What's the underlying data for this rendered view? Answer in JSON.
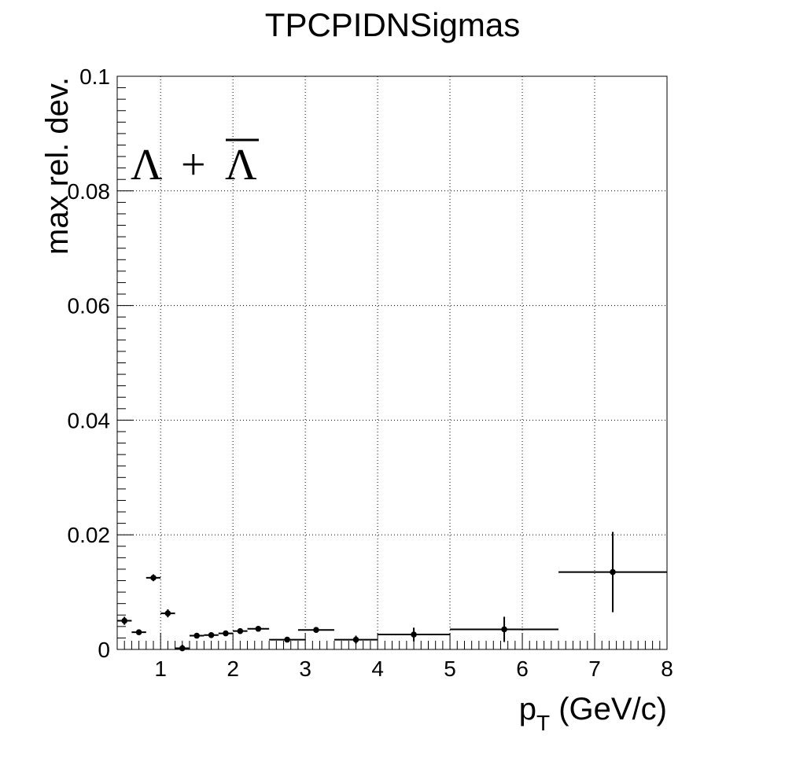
{
  "chart_data": {
    "type": "scatter",
    "title": "TPCPIDNSigmas",
    "xlabel_main": "p",
    "xlabel_sub": "T",
    "xlabel_units": " (GeV/c)",
    "ylabel": "max rel. dev.",
    "annotation": {
      "lambda": "Λ",
      "plus": "+",
      "antilambda": "Λ"
    },
    "xlim": [
      0.4,
      8.0
    ],
    "ylim": [
      0.0,
      0.1
    ],
    "x_ticks": [
      "1",
      "2",
      "3",
      "4",
      "5",
      "6",
      "7",
      "8"
    ],
    "x_tick_values": [
      1,
      2,
      3,
      4,
      5,
      6,
      7,
      8
    ],
    "y_ticks": [
      "0",
      "0.02",
      "0.04",
      "0.06",
      "0.08",
      "0.1"
    ],
    "y_tick_values": [
      0,
      0.02,
      0.04,
      0.06,
      0.08,
      0.1
    ],
    "grid": true,
    "legend": "none",
    "points": [
      {
        "x": 0.5,
        "y": 0.005,
        "xerr": 0.1,
        "yerr": 0.0007
      },
      {
        "x": 0.7,
        "y": 0.003,
        "xerr": 0.1,
        "yerr": 0.0003
      },
      {
        "x": 0.9,
        "y": 0.0125,
        "xerr": 0.1,
        "yerr": 0.0006
      },
      {
        "x": 1.1,
        "y": 0.0063,
        "xerr": 0.1,
        "yerr": 0.0007
      },
      {
        "x": 1.3,
        "y": 0.0002,
        "xerr": 0.1,
        "yerr": 0.0006
      },
      {
        "x": 1.5,
        "y": 0.0024,
        "xerr": 0.1,
        "yerr": 0.0003
      },
      {
        "x": 1.7,
        "y": 0.0025,
        "xerr": 0.1,
        "yerr": 0.0003
      },
      {
        "x": 1.9,
        "y": 0.0028,
        "xerr": 0.1,
        "yerr": 0.0003
      },
      {
        "x": 2.1,
        "y": 0.0032,
        "xerr": 0.1,
        "yerr": 0.0003
      },
      {
        "x": 2.35,
        "y": 0.0036,
        "xerr": 0.15,
        "yerr": 0.0003
      },
      {
        "x": 2.75,
        "y": 0.0017,
        "xerr": 0.25,
        "yerr": 0.0003
      },
      {
        "x": 3.15,
        "y": 0.0034,
        "xerr": 0.25,
        "yerr": 0.0003
      },
      {
        "x": 3.7,
        "y": 0.0017,
        "xerr": 0.3,
        "yerr": 0.0007
      },
      {
        "x": 4.5,
        "y": 0.0026,
        "xerr": 0.5,
        "yerr": 0.0012
      },
      {
        "x": 5.75,
        "y": 0.0035,
        "xerr": 0.75,
        "yerr": 0.0022
      },
      {
        "x": 7.25,
        "y": 0.0135,
        "xerr": 0.75,
        "yerr": 0.007
      }
    ]
  }
}
